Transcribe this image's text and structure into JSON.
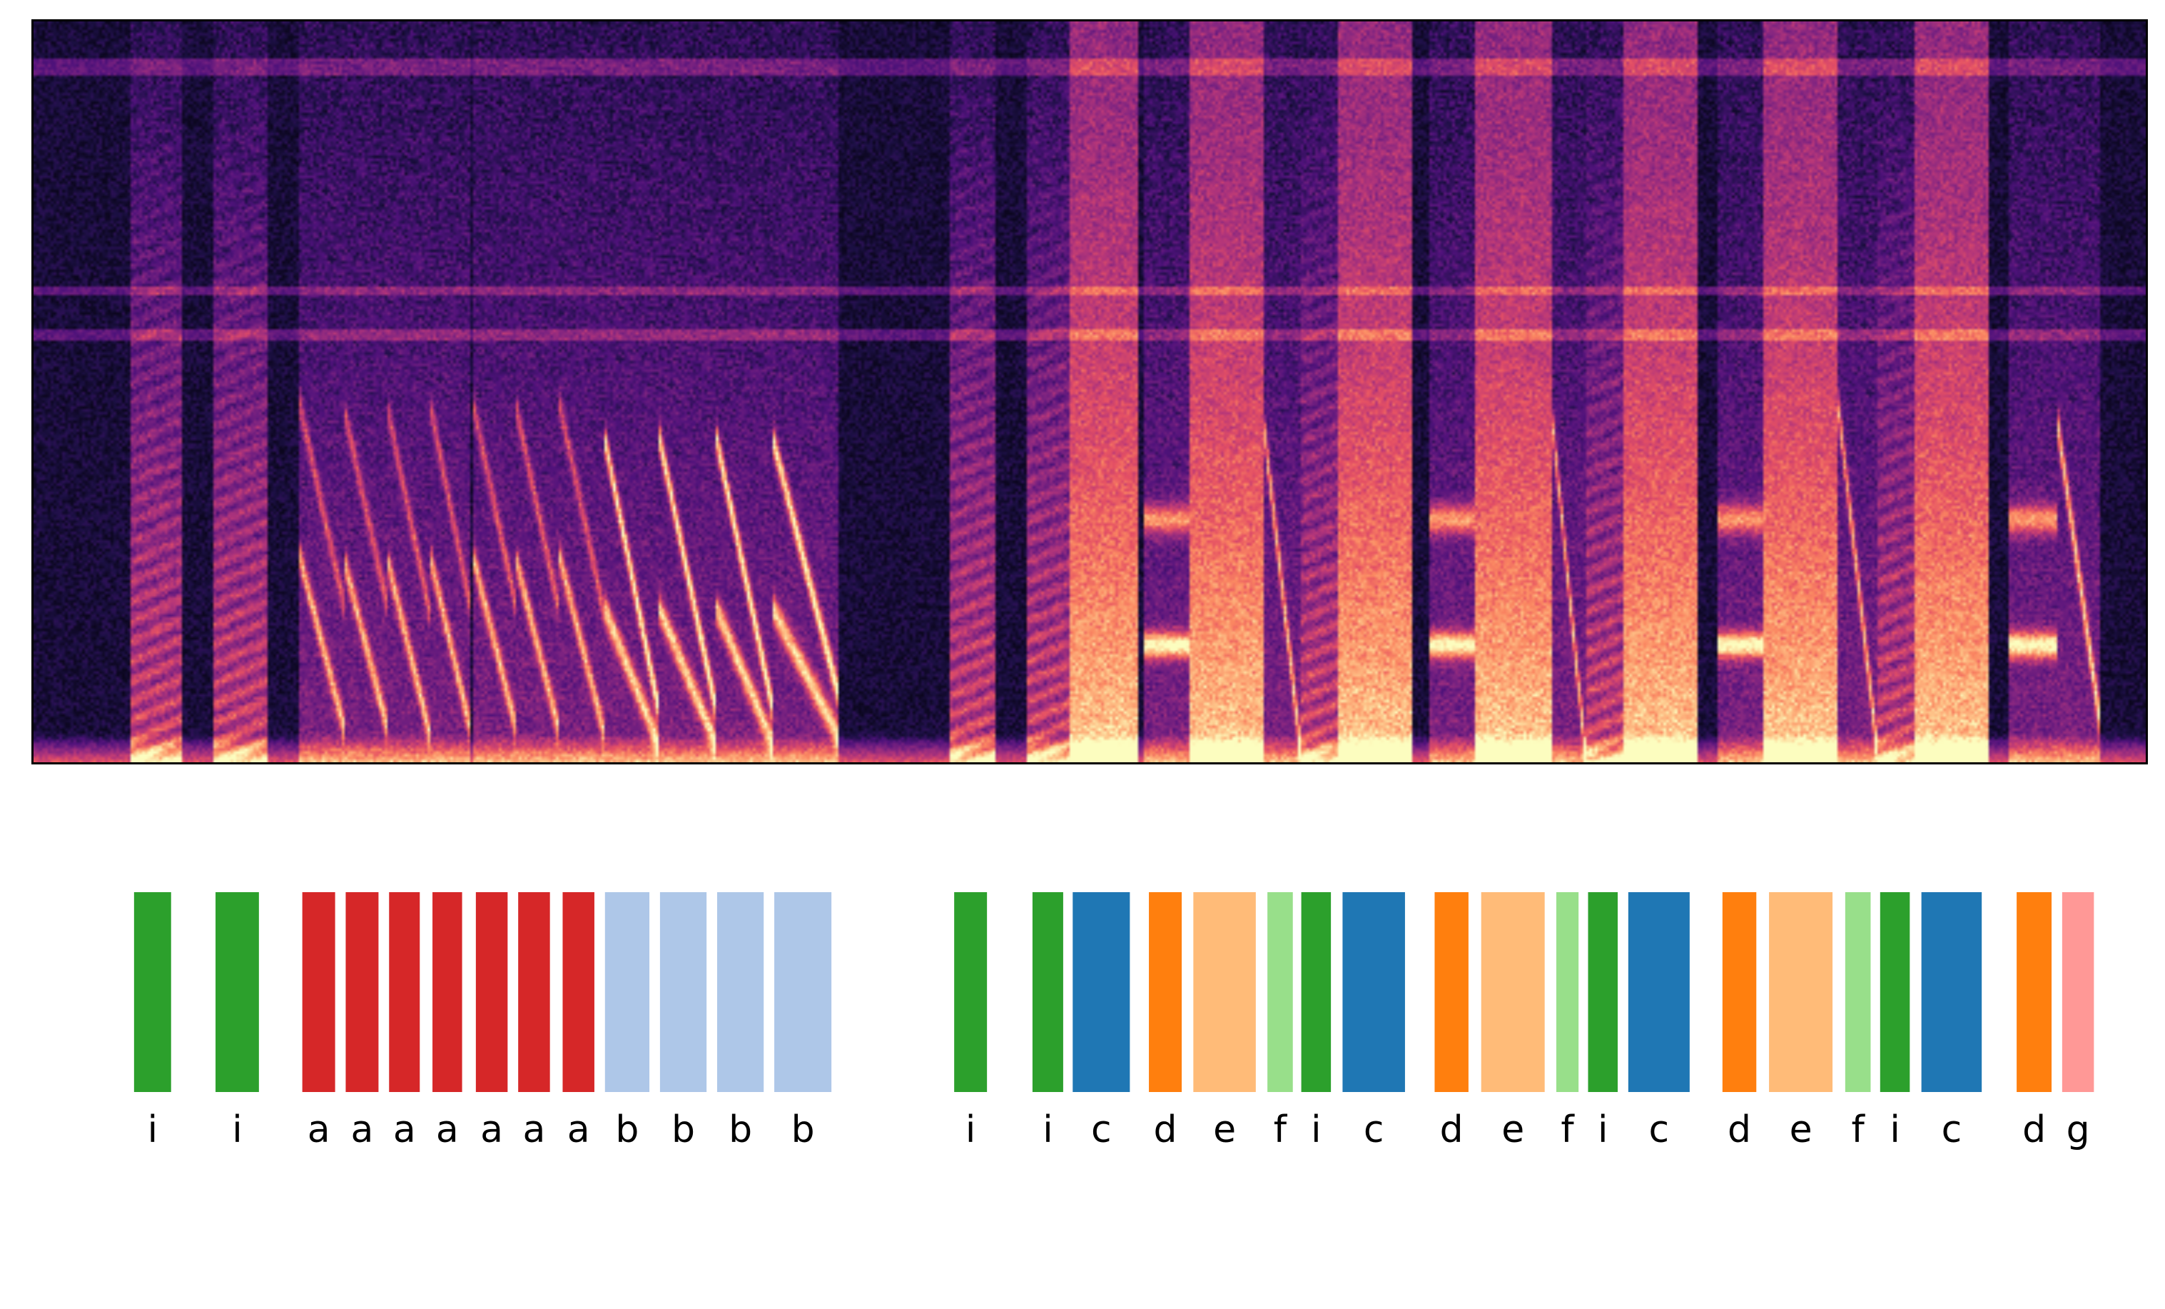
{
  "chart_data": {
    "type": "spectrogram_with_syllable_labels",
    "colormap": "magma",
    "axes_visible": false,
    "label_colors": {
      "a": "#d62728",
      "b": "#aec7e8",
      "c": "#1f77b4",
      "d": "#ff7f0e",
      "e": "#ffbb78",
      "f": "#98df8a",
      "g": "#ff9896",
      "i": "#2ca02c"
    },
    "time_range": [
      0,
      100
    ],
    "segments": [
      {
        "label": "i",
        "start": 4.85,
        "end": 6.6
      },
      {
        "label": "i",
        "start": 8.7,
        "end": 10.75
      },
      {
        "label": "a",
        "start": 12.8,
        "end": 14.35
      },
      {
        "label": "a",
        "start": 14.85,
        "end": 16.4
      },
      {
        "label": "a",
        "start": 16.9,
        "end": 18.35
      },
      {
        "label": "a",
        "start": 18.95,
        "end": 20.35
      },
      {
        "label": "a",
        "start": 21.0,
        "end": 22.5
      },
      {
        "label": "a",
        "start": 23.0,
        "end": 24.5
      },
      {
        "label": "a",
        "start": 25.1,
        "end": 26.6
      },
      {
        "label": "b",
        "start": 27.1,
        "end": 29.2
      },
      {
        "label": "b",
        "start": 29.7,
        "end": 31.9
      },
      {
        "label": "b",
        "start": 32.4,
        "end": 34.6
      },
      {
        "label": "b",
        "start": 35.1,
        "end": 37.8
      },
      {
        "label": "i",
        "start": 43.6,
        "end": 45.15
      },
      {
        "label": "i",
        "start": 47.3,
        "end": 48.75
      },
      {
        "label": "c",
        "start": 49.2,
        "end": 51.9
      },
      {
        "label": "d",
        "start": 52.8,
        "end": 54.35
      },
      {
        "label": "e",
        "start": 54.9,
        "end": 57.85
      },
      {
        "label": "f",
        "start": 58.4,
        "end": 59.6
      },
      {
        "label": "i",
        "start": 60.0,
        "end": 61.4
      },
      {
        "label": "c",
        "start": 61.95,
        "end": 64.9
      },
      {
        "label": "d",
        "start": 66.3,
        "end": 67.9
      },
      {
        "label": "e",
        "start": 68.5,
        "end": 71.5
      },
      {
        "label": "f",
        "start": 72.05,
        "end": 73.1
      },
      {
        "label": "i",
        "start": 73.55,
        "end": 74.95
      },
      {
        "label": "c",
        "start": 75.45,
        "end": 78.35
      },
      {
        "label": "d",
        "start": 79.9,
        "end": 81.5
      },
      {
        "label": "e",
        "start": 82.1,
        "end": 85.1
      },
      {
        "label": "f",
        "start": 85.7,
        "end": 86.9
      },
      {
        "label": "i",
        "start": 87.35,
        "end": 88.75
      },
      {
        "label": "c",
        "start": 89.3,
        "end": 92.15
      },
      {
        "label": "d",
        "start": 93.8,
        "end": 95.45
      },
      {
        "label": "g",
        "start": 95.95,
        "end": 97.45
      }
    ]
  }
}
